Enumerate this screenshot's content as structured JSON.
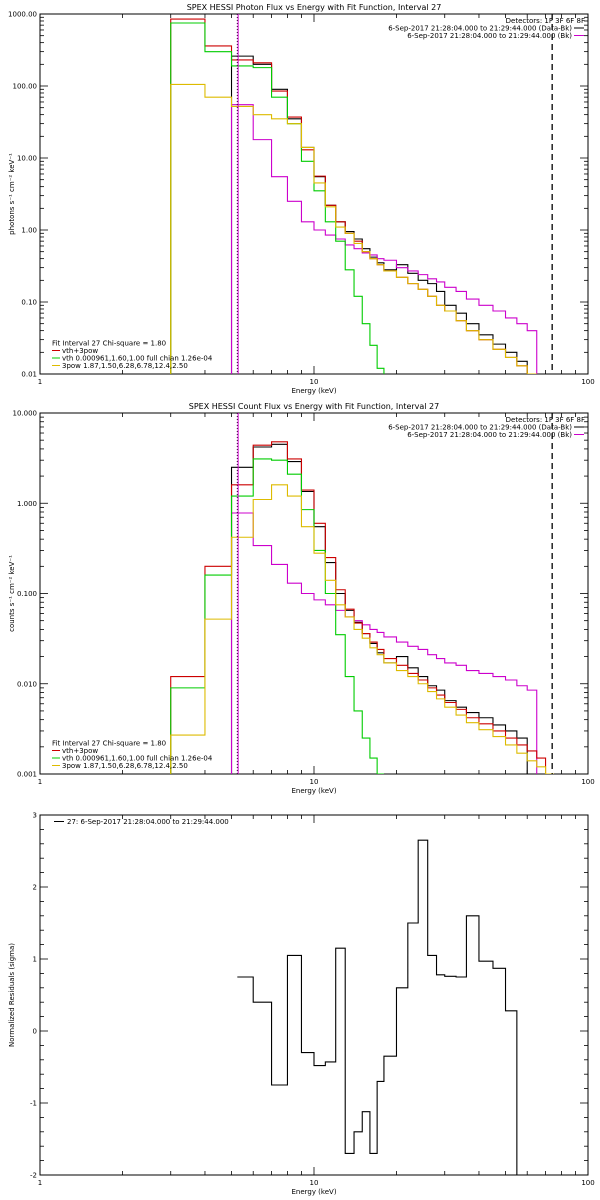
{
  "chart_data": [
    {
      "type": "line",
      "title": "SPEX HESSI Photon Flux vs Energy with Fit Function, Interval 27",
      "xlabel": "Energy (keV)",
      "ylabel": "photons s⁻¹ cm⁻² keV⁻¹",
      "xscale": "log",
      "yscale": "log",
      "xlim": [
        1,
        100
      ],
      "ylim": [
        0.01,
        1000
      ],
      "x_ticks": [
        {
          "v": 1,
          "label": "1"
        },
        {
          "v": 10,
          "label": "10"
        },
        {
          "v": 100,
          "label": "100"
        }
      ],
      "y_ticks": [
        {
          "v": 0.01,
          "label": "0.01"
        },
        {
          "v": 0.1,
          "label": "0.10"
        },
        {
          "v": 1,
          "label": "1.00"
        },
        {
          "v": 10,
          "label": "10.00"
        },
        {
          "v": 100,
          "label": "100.00"
        },
        {
          "v": 1000,
          "label": "1000.00"
        }
      ],
      "legend_top": [
        {
          "text": "Detectors: 1F 3F 6F 8F",
          "color": ""
        },
        {
          "text": "6-Sep-2017 21:28:04.000 to 21:29:44.000 (Data-Bk)",
          "color": "#000000"
        },
        {
          "text": "6-Sep-2017 21:28:04.000 to 21:29:44.000 (Bk)",
          "color": "#cc00cc"
        }
      ],
      "legend_bottom": [
        {
          "text": "Fit Interval 27   Chi-square = 1.80",
          "color": ""
        },
        {
          "text": "vth+3pow",
          "color": "#cc0000"
        },
        {
          "text": "vth 0.000961,1.60,1.00  full chian 1.26e-04",
          "color": "#00cc00"
        },
        {
          "text": "3pow 1.87,1.50,6.28,6.78,12.4,2.50",
          "color": "#ddbb00"
        }
      ],
      "vlines": [
        {
          "x": 5.25,
          "color": "#000000",
          "style": "dotted"
        },
        {
          "x": 5.25,
          "color": "#cc00cc",
          "style": "solid"
        },
        {
          "x": 74,
          "color": "#000000",
          "style": "dashed"
        }
      ],
      "bin_edges": [
        3,
        4,
        5,
        6,
        7,
        8,
        9,
        10,
        11,
        12,
        13,
        14,
        15,
        16,
        17,
        18,
        20,
        22,
        24,
        26,
        28,
        30,
        33,
        36,
        40,
        45,
        50,
        55,
        60,
        65,
        70,
        75,
        80
      ],
      "series": [
        {
          "name": "6-Sep-2017 21:28:04.000 to 21:29:44.000 (Data-Bk)",
          "color": "#000000",
          "values": [
            null,
            null,
            260,
            200,
            90,
            35,
            14,
            5.5,
            2.2,
            1.3,
            0.95,
            0.75,
            0.55,
            0.42,
            0.35,
            0.28,
            0.33,
            0.25,
            0.2,
            0.18,
            0.14,
            0.09,
            0.07,
            0.05,
            0.035,
            0.026,
            0.02,
            0.015,
            null,
            null,
            null,
            null
          ]
        },
        {
          "name": "6-Sep-2017 21:28:04.000 to 21:29:44.000 (Bk)",
          "color": "#cc00cc",
          "values": [
            null,
            null,
            55,
            18,
            5.5,
            2.5,
            1.3,
            1.0,
            0.85,
            0.75,
            0.62,
            0.55,
            0.48,
            0.45,
            0.4,
            0.38,
            0.3,
            0.27,
            0.24,
            0.21,
            0.19,
            0.16,
            0.14,
            0.11,
            0.09,
            0.075,
            0.06,
            0.05,
            0.04,
            null,
            null,
            null
          ]
        },
        {
          "name": "vth+3pow",
          "color": "#cc0000",
          "values": [
            850,
            360,
            230,
            210,
            85,
            37,
            13,
            5.6,
            2.2,
            1.3,
            0.9,
            0.7,
            0.5,
            0.4,
            0.33,
            0.27,
            0.22,
            0.18,
            0.15,
            0.12,
            0.09,
            0.075,
            0.055,
            0.04,
            0.03,
            0.022,
            0.017,
            0.013,
            0.01,
            null,
            null,
            null
          ]
        },
        {
          "name": "vth 0.000961,1.60,1.00  full chian 1.26e-04",
          "color": "#00cc00",
          "values": [
            750,
            300,
            190,
            180,
            70,
            30,
            9,
            3.5,
            1.3,
            0.7,
            0.28,
            0.12,
            0.05,
            0.025,
            0.012,
            null,
            null,
            null,
            null,
            null,
            null,
            null,
            null,
            null,
            null,
            null,
            null,
            null,
            null,
            null,
            null,
            null
          ]
        },
        {
          "name": "3pow 1.87,1.50,6.28,6.78,12.4,2.50",
          "color": "#ddbb00",
          "values": [
            105,
            70,
            52,
            40,
            35,
            30,
            14,
            4.5,
            2.1,
            1.1,
            0.9,
            0.65,
            0.5,
            0.4,
            0.33,
            0.27,
            0.22,
            0.18,
            0.15,
            0.12,
            0.09,
            0.075,
            0.055,
            0.04,
            0.03,
            0.022,
            0.017,
            0.013,
            0.01,
            null,
            null,
            null
          ]
        }
      ]
    },
    {
      "type": "line",
      "title": "SPEX HESSI Count Flux vs Energy with Fit Function, Interval 27",
      "xlabel": "Energy (keV)",
      "ylabel": "counts s⁻¹ cm⁻² keV⁻¹",
      "xscale": "log",
      "yscale": "log",
      "xlim": [
        1,
        100
      ],
      "ylim": [
        0.001,
        10
      ],
      "x_ticks": [
        {
          "v": 1,
          "label": "1"
        },
        {
          "v": 10,
          "label": "10"
        },
        {
          "v": 100,
          "label": "100"
        }
      ],
      "y_ticks": [
        {
          "v": 0.001,
          "label": "0.001"
        },
        {
          "v": 0.01,
          "label": "0.010"
        },
        {
          "v": 0.1,
          "label": "0.100"
        },
        {
          "v": 1,
          "label": "1.000"
        },
        {
          "v": 10,
          "label": "10.000"
        }
      ],
      "legend_top": [
        {
          "text": "Detectors: 1F 3F 6F 8F",
          "color": ""
        },
        {
          "text": "6-Sep-2017 21:28:04.000 to 21:29:44.000 (Data-Bk)",
          "color": "#000000"
        },
        {
          "text": "6-Sep-2017 21:28:04.000 to 21:29:44.000 (Bk)",
          "color": "#cc00cc"
        }
      ],
      "legend_bottom": [
        {
          "text": "Fit Interval 27   Chi-square = 1.80",
          "color": ""
        },
        {
          "text": "vth+3pow",
          "color": "#cc0000"
        },
        {
          "text": "vth 0.000961,1.60,1.00  full chian 1.26e-04",
          "color": "#00cc00"
        },
        {
          "text": "3pow 1.87,1.50,6.28,6.78,12.4,2.50",
          "color": "#ddbb00"
        }
      ],
      "vlines": [
        {
          "x": 5.25,
          "color": "#000000",
          "style": "dotted"
        },
        {
          "x": 5.25,
          "color": "#cc00cc",
          "style": "solid"
        },
        {
          "x": 74,
          "color": "#000000",
          "style": "dashed"
        }
      ],
      "bin_edges": [
        3,
        4,
        5,
        6,
        7,
        8,
        9,
        10,
        11,
        12,
        13,
        14,
        15,
        16,
        17,
        18,
        20,
        22,
        24,
        26,
        28,
        30,
        33,
        36,
        40,
        45,
        50,
        55,
        60,
        65,
        70,
        75,
        80,
        85
      ],
      "series": [
        {
          "name": "6-Sep-2017 21:28:04.000 to 21:29:44.000 (Data-Bk)",
          "color": "#000000",
          "values": [
            null,
            null,
            2.5,
            4.2,
            4.5,
            2.9,
            1.35,
            0.55,
            0.22,
            0.1,
            0.065,
            0.048,
            0.036,
            0.028,
            0.022,
            0.017,
            0.02,
            0.015,
            0.012,
            0.0095,
            0.0085,
            0.0065,
            0.0055,
            0.0048,
            0.0042,
            0.0035,
            0.003,
            0.0025,
            null,
            null,
            null,
            null,
            null
          ]
        },
        {
          "name": "6-Sep-2017 21:28:04.000 to 21:29:44.000 (Bk)",
          "color": "#cc00cc",
          "values": [
            null,
            null,
            0.78,
            0.34,
            0.21,
            0.13,
            0.1,
            0.085,
            0.075,
            0.065,
            0.055,
            0.05,
            0.045,
            0.04,
            0.037,
            0.033,
            0.029,
            0.026,
            0.024,
            0.021,
            0.019,
            0.017,
            0.016,
            0.014,
            0.013,
            0.012,
            0.011,
            0.0095,
            0.0085,
            null,
            null,
            null,
            null
          ]
        },
        {
          "name": "vth+3pow",
          "color": "#cc0000",
          "values": [
            0.012,
            0.2,
            1.6,
            4.4,
            4.8,
            3.1,
            1.4,
            0.6,
            0.25,
            0.11,
            0.067,
            0.047,
            0.036,
            0.029,
            0.024,
            0.019,
            0.016,
            0.013,
            0.011,
            0.009,
            0.0075,
            0.0062,
            0.0052,
            0.0042,
            0.0036,
            0.003,
            0.0025,
            0.0021,
            0.0018,
            0.0015,
            null,
            null,
            null
          ]
        },
        {
          "name": "vth 0.000961,1.60,1.00  full chian 1.26e-04",
          "color": "#00cc00",
          "values": [
            0.009,
            0.16,
            1.2,
            3.1,
            3.0,
            2.1,
            0.85,
            0.3,
            0.1,
            0.035,
            0.012,
            0.005,
            0.0025,
            0.0015,
            0.001,
            null,
            null,
            null,
            null,
            null,
            null,
            null,
            null,
            null,
            null,
            null,
            null,
            null,
            null,
            null,
            null,
            null,
            null
          ]
        },
        {
          "name": "3pow 1.87,1.50,6.28,6.78,12.4,2.50",
          "color": "#ddbb00",
          "values": [
            0.0027,
            0.052,
            0.42,
            1.1,
            1.6,
            1.2,
            0.55,
            0.28,
            0.14,
            0.075,
            0.055,
            0.04,
            0.032,
            0.025,
            0.021,
            0.017,
            0.014,
            0.012,
            0.01,
            0.0082,
            0.0068,
            0.0055,
            0.0045,
            0.0037,
            0.0031,
            0.0026,
            0.0021,
            0.0017,
            0.0014,
            0.0012,
            0.001,
            null,
            null
          ]
        }
      ]
    },
    {
      "type": "line",
      "title": "",
      "xlabel": "Energy (keV)",
      "ylabel": "Normalized Residuals (sigma)",
      "xscale": "log",
      "yscale": "linear",
      "xlim": [
        1,
        100
      ],
      "ylim": [
        -2,
        3
      ],
      "x_ticks": [
        {
          "v": 1,
          "label": "1"
        },
        {
          "v": 10,
          "label": "10"
        },
        {
          "v": 100,
          "label": "100"
        }
      ],
      "y_ticks": [
        {
          "v": -2,
          "label": "-2"
        },
        {
          "v": -1,
          "label": "-1"
        },
        {
          "v": 0,
          "label": "0"
        },
        {
          "v": 1,
          "label": "1"
        },
        {
          "v": 2,
          "label": "2"
        },
        {
          "v": 3,
          "label": "3"
        }
      ],
      "legend_top": [
        {
          "text": "27:  6-Sep-2017 21:28:04.000 to 21:29:44.000",
          "color": "#000000"
        }
      ],
      "legend_bottom": [],
      "vlines": [],
      "bin_edges": [
        5.25,
        6,
        7,
        8,
        9,
        10,
        11,
        12,
        13,
        14,
        15,
        16,
        17,
        18,
        20,
        22,
        24,
        26,
        28,
        30,
        33,
        36,
        40,
        45,
        50,
        55,
        60,
        65,
        70,
        74
      ],
      "series": [
        {
          "name": "27:  6-Sep-2017 21:28:04.000 to 21:29:44.000",
          "color": "#000000",
          "values": [
            0.75,
            0.4,
            -0.75,
            1.05,
            -0.3,
            -0.48,
            -0.43,
            1.15,
            -1.7,
            -1.4,
            -1.12,
            -1.7,
            -0.7,
            -0.35,
            0.6,
            1.5,
            2.65,
            1.05,
            0.78,
            0.76,
            0.75,
            1.6,
            0.97,
            0.87,
            0.28
          ]
        }
      ]
    }
  ]
}
